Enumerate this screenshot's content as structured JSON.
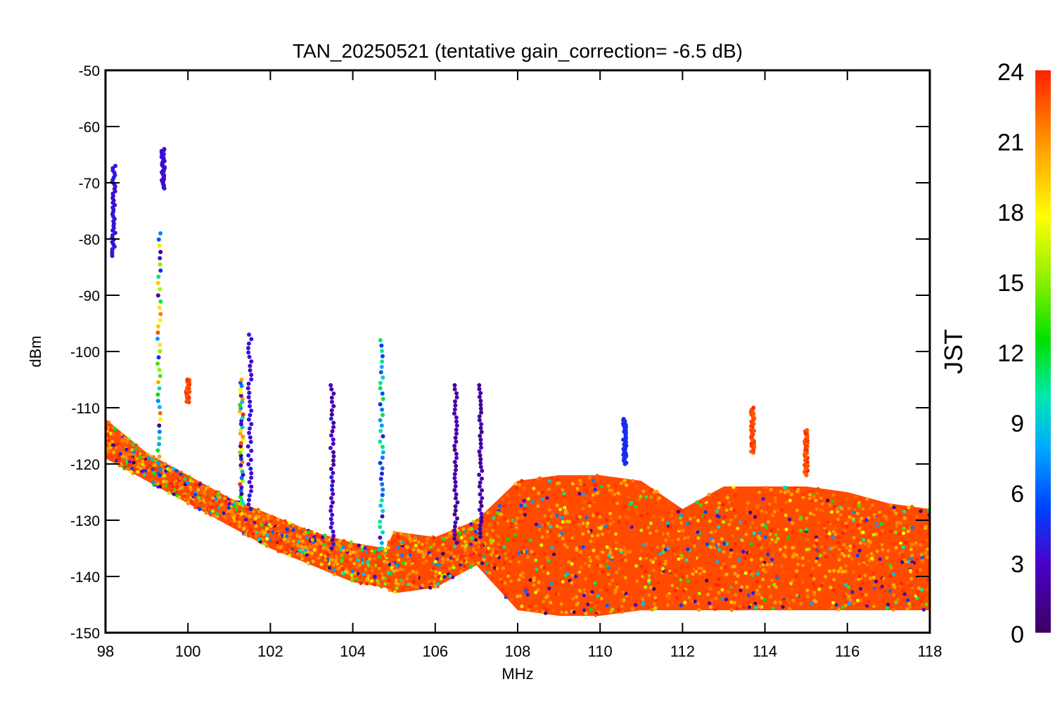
{
  "chart_data": {
    "type": "scatter",
    "title": "TAN_20250521 (tentative gain_correction= -6.5 dB)",
    "xlabel": "MHz",
    "ylabel": "dBm",
    "xlim": [
      98,
      118
    ],
    "ylim": [
      -150,
      -50
    ],
    "xticks": [
      "98",
      "100",
      "102",
      "104",
      "106",
      "108",
      "110",
      "112",
      "114",
      "116",
      "118"
    ],
    "yticks": [
      "-50",
      "-60",
      "-70",
      "-80",
      "-90",
      "-100",
      "-110",
      "-120",
      "-130",
      "-140",
      "-150"
    ],
    "grid": false,
    "colorbar": {
      "label": "JST",
      "range": [
        0,
        24
      ],
      "ticks": [
        "0",
        "3",
        "6",
        "9",
        "12",
        "15",
        "18",
        "21",
        "24"
      ],
      "colormap": "rainbow (purple-blue-cyan-green-yellow-orange-red)"
    },
    "noise_floor": {
      "x": [
        98,
        99,
        100,
        101,
        102,
        103,
        104,
        104.8,
        105,
        106,
        107,
        108,
        109,
        110,
        111,
        112,
        113,
        114,
        115,
        116,
        117,
        118
      ],
      "dBm_upper": [
        -112,
        -118,
        -122,
        -126,
        -129,
        -132,
        -134,
        -135,
        -132,
        -133,
        -130,
        -123,
        -122,
        -122,
        -123,
        -128,
        -124,
        -124,
        -124,
        -125,
        -127,
        -128
      ],
      "dBm_lower": [
        -119,
        -123,
        -127,
        -131,
        -135,
        -138,
        -141,
        -142,
        -143,
        -142,
        -138,
        -146,
        -147,
        -147,
        -146,
        -146,
        -146,
        -146,
        -146,
        -146,
        -146,
        -146
      ]
    },
    "signals": [
      {
        "MHz": 98.2,
        "dBm_top": -67,
        "dBm_bottom": -83,
        "JST_hours": "3-4"
      },
      {
        "MHz": 99.3,
        "dBm_top": -79,
        "dBm_bottom": -122,
        "JST_hours": "0-24"
      },
      {
        "MHz": 99.4,
        "dBm_top": -64,
        "dBm_bottom": -71,
        "JST_hours": "3-4"
      },
      {
        "MHz": 100.0,
        "dBm_top": -105,
        "dBm_bottom": -109,
        "JST_hours": "22-24"
      },
      {
        "MHz": 101.3,
        "dBm_top": -105,
        "dBm_bottom": -127,
        "JST_hours": "0-24"
      },
      {
        "MHz": 101.5,
        "dBm_top": -97,
        "dBm_bottom": -128,
        "JST_hours": "3-4"
      },
      {
        "MHz": 103.5,
        "dBm_top": -106,
        "dBm_bottom": -135,
        "JST_hours": "1-4"
      },
      {
        "MHz": 104.7,
        "dBm_top": -98,
        "dBm_bottom": -135,
        "JST_hours": "3-12"
      },
      {
        "MHz": 106.5,
        "dBm_top": -106,
        "dBm_bottom": -134,
        "JST_hours": "1-3"
      },
      {
        "MHz": 107.1,
        "dBm_top": -106,
        "dBm_bottom": -133,
        "JST_hours": "1-3"
      },
      {
        "MHz": 110.6,
        "dBm_top": -112,
        "dBm_bottom": -120,
        "JST_hours": "4-5"
      },
      {
        "MHz": 113.7,
        "dBm_top": -110,
        "dBm_bottom": -118,
        "JST_hours": "22-24"
      },
      {
        "MHz": 115.0,
        "dBm_top": -114,
        "dBm_bottom": -122,
        "JST_hours": "22-24"
      }
    ]
  }
}
